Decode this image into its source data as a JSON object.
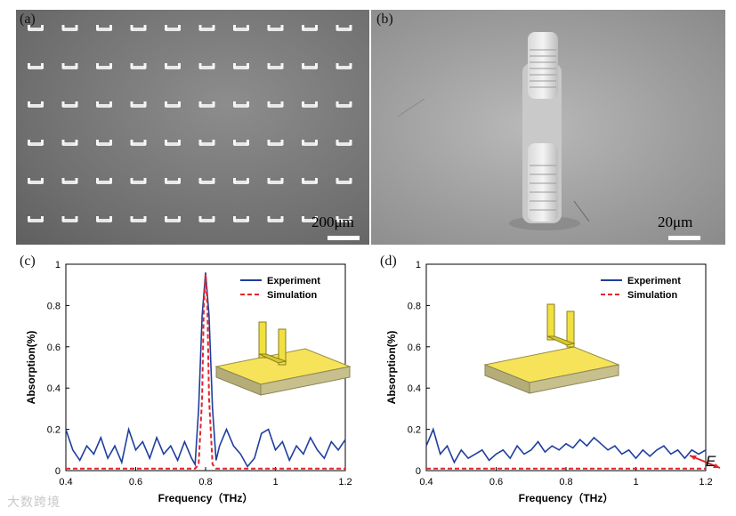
{
  "panels": {
    "a": {
      "tag": "(a)",
      "scale_label": "200μm"
    },
    "b": {
      "tag": "(b)",
      "scale_label": "20μm"
    },
    "c": {
      "tag": "(c)"
    },
    "d": {
      "tag": "(d)"
    }
  },
  "colors": {
    "experiment": "#1f3f9e",
    "simulation": "#e0262b",
    "metal": "#f0e040"
  },
  "inset": {
    "field_label": "E"
  },
  "watermark": "大数跨境",
  "chart_data": [
    {
      "type": "line",
      "panel": "c",
      "xlabel": "Frequency（THz）",
      "ylabel": "Absorption(%)",
      "xlim": [
        0.4,
        1.2
      ],
      "ylim": [
        0,
        1
      ],
      "xticks": [
        "0.4",
        "0.6",
        "0.8",
        "1",
        "1.2"
      ],
      "yticks": [
        "0",
        "0.2",
        "0.4",
        "0.6",
        "0.8",
        "1"
      ],
      "legend": [
        "Experiment",
        "Simulation"
      ],
      "legend_position": "top-right",
      "series": [
        {
          "name": "Experiment",
          "x": [
            0.4,
            0.42,
            0.44,
            0.46,
            0.48,
            0.5,
            0.52,
            0.54,
            0.56,
            0.58,
            0.6,
            0.62,
            0.64,
            0.66,
            0.68,
            0.7,
            0.72,
            0.74,
            0.76,
            0.77,
            0.78,
            0.79,
            0.8,
            0.81,
            0.82,
            0.83,
            0.84,
            0.86,
            0.88,
            0.9,
            0.92,
            0.94,
            0.96,
            0.98,
            1.0,
            1.02,
            1.04,
            1.06,
            1.08,
            1.1,
            1.12,
            1.14,
            1.16,
            1.18,
            1.2
          ],
          "y": [
            0.2,
            0.1,
            0.05,
            0.12,
            0.08,
            0.16,
            0.06,
            0.12,
            0.04,
            0.2,
            0.1,
            0.14,
            0.06,
            0.16,
            0.08,
            0.12,
            0.05,
            0.14,
            0.06,
            0.03,
            0.3,
            0.75,
            0.96,
            0.75,
            0.3,
            0.05,
            0.12,
            0.2,
            0.12,
            0.08,
            0.02,
            0.06,
            0.18,
            0.2,
            0.1,
            0.14,
            0.05,
            0.12,
            0.08,
            0.16,
            0.1,
            0.06,
            0.14,
            0.1,
            0.15
          ]
        },
        {
          "name": "Simulation",
          "x": [
            0.4,
            0.77,
            0.78,
            0.79,
            0.795,
            0.8,
            0.805,
            0.81,
            0.82,
            0.83,
            1.2
          ],
          "y": [
            0.01,
            0.01,
            0.03,
            0.35,
            0.8,
            0.95,
            0.8,
            0.35,
            0.03,
            0.01,
            0.01
          ]
        }
      ]
    },
    {
      "type": "line",
      "panel": "d",
      "xlabel": "Frequency（THz）",
      "ylabel": "Absorption(%)",
      "xlim": [
        0.4,
        1.2
      ],
      "ylim": [
        0,
        1
      ],
      "xticks": [
        "0.4",
        "0.6",
        "0.8",
        "1",
        "1.2"
      ],
      "yticks": [
        "0",
        "0.2",
        "0.4",
        "0.6",
        "0.8",
        "1"
      ],
      "legend": [
        "Experiment",
        "Simulation"
      ],
      "legend_position": "top-right",
      "series": [
        {
          "name": "Experiment",
          "x": [
            0.4,
            0.42,
            0.44,
            0.46,
            0.48,
            0.5,
            0.52,
            0.54,
            0.56,
            0.58,
            0.6,
            0.62,
            0.64,
            0.66,
            0.68,
            0.7,
            0.72,
            0.74,
            0.76,
            0.78,
            0.8,
            0.82,
            0.84,
            0.86,
            0.88,
            0.9,
            0.92,
            0.94,
            0.96,
            0.98,
            1.0,
            1.02,
            1.04,
            1.06,
            1.08,
            1.1,
            1.12,
            1.14,
            1.16,
            1.18,
            1.2
          ],
          "y": [
            0.12,
            0.2,
            0.08,
            0.12,
            0.04,
            0.1,
            0.06,
            0.08,
            0.1,
            0.05,
            0.08,
            0.1,
            0.06,
            0.12,
            0.08,
            0.1,
            0.14,
            0.09,
            0.12,
            0.1,
            0.13,
            0.11,
            0.15,
            0.12,
            0.16,
            0.13,
            0.1,
            0.12,
            0.08,
            0.1,
            0.06,
            0.1,
            0.07,
            0.1,
            0.12,
            0.08,
            0.1,
            0.06,
            0.1,
            0.08,
            0.1
          ]
        },
        {
          "name": "Simulation",
          "x": [
            0.4,
            1.2
          ],
          "y": [
            0.01,
            0.01
          ]
        }
      ]
    }
  ]
}
